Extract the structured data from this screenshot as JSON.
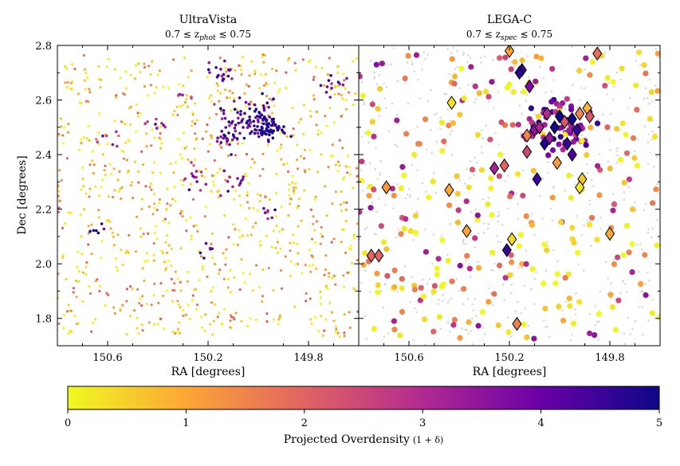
{
  "chart_data": [
    {
      "type": "scatter",
      "title": "UltraVista",
      "subtitle": "0.7 ≲ z_phot ≲ 0.75",
      "subtitle_parts": {
        "left": "0.7 ≲ z",
        "sub": "phot",
        "right": " ≲ 0.75"
      },
      "xlabel": "RA [degrees]",
      "ylabel": "Dec [degrees]",
      "xlim": [
        150.8,
        149.6
      ],
      "ylim": [
        1.7,
        2.8
      ],
      "xticks": [
        150.6,
        150.2,
        149.8
      ],
      "xtick_labels": [
        "150.6",
        "150.2",
        "149.8"
      ],
      "yticks": [
        1.8,
        2.0,
        2.2,
        2.4,
        2.6,
        2.8
      ],
      "ytick_labels": [
        "1.8",
        "2.0",
        "2.2",
        "2.4",
        "2.6",
        "2.8"
      ],
      "clusters": [
        {
          "ra": 150.0,
          "dec": 2.52,
          "spread": 0.05,
          "n": 70,
          "delta": 4.6
        },
        {
          "ra": 149.95,
          "dec": 2.49,
          "spread": 0.03,
          "n": 40,
          "delta": 4.9
        },
        {
          "ra": 150.1,
          "dec": 2.55,
          "spread": 0.05,
          "n": 25,
          "delta": 3.8
        },
        {
          "ra": 150.12,
          "dec": 2.46,
          "spread": 0.03,
          "n": 20,
          "delta": 4.2
        },
        {
          "ra": 150.15,
          "dec": 2.7,
          "spread": 0.03,
          "n": 18,
          "delta": 3.9
        },
        {
          "ra": 149.7,
          "dec": 2.65,
          "spread": 0.03,
          "n": 12,
          "delta": 4.0
        },
        {
          "ra": 150.25,
          "dec": 2.33,
          "spread": 0.03,
          "n": 12,
          "delta": 3.3
        },
        {
          "ra": 150.1,
          "dec": 2.3,
          "spread": 0.03,
          "n": 12,
          "delta": 3.6
        },
        {
          "ra": 150.4,
          "dec": 2.52,
          "spread": 0.03,
          "n": 8,
          "delta": 3.5
        },
        {
          "ra": 149.95,
          "dec": 2.2,
          "spread": 0.03,
          "n": 8,
          "delta": 3.9
        },
        {
          "ra": 150.65,
          "dec": 2.13,
          "spread": 0.02,
          "n": 6,
          "delta": 4.7
        },
        {
          "ra": 150.19,
          "dec": 2.05,
          "spread": 0.02,
          "n": 6,
          "delta": 4.5
        },
        {
          "ra": 150.3,
          "dec": 2.62,
          "spread": 0.02,
          "n": 6,
          "delta": 3.0
        },
        {
          "ra": 150.6,
          "dec": 2.46,
          "spread": 0.03,
          "n": 6,
          "delta": 3.2
        }
      ],
      "background_count": 900,
      "background_delta_range": [
        0,
        2.2
      ],
      "marker": "circle"
    },
    {
      "type": "scatter",
      "title": "LEGA-C",
      "subtitle": "0.7 ≲ z_spec ≲ 0.75",
      "subtitle_parts": {
        "left": "0.7 ≲ z",
        "sub": "spec",
        "right": " ≲ 0.75"
      },
      "xlabel": "RA [degrees]",
      "xlim": [
        150.8,
        149.6
      ],
      "ylim": [
        1.7,
        2.8
      ],
      "xticks": [
        150.6,
        150.2,
        149.8
      ],
      "xtick_labels": [
        "150.6",
        "150.2",
        "149.8"
      ],
      "yticks": [
        1.8,
        2.0,
        2.2,
        2.4,
        2.6,
        2.8
      ],
      "background_count": 500,
      "background_color": "#d9d9d9",
      "circle_count": 330,
      "circle_delta_range": [
        0,
        4.5
      ],
      "diamonds": [
        {
          "ra": 150.2,
          "dec": 2.78,
          "delta": 1.0
        },
        {
          "ra": 149.85,
          "dec": 2.77,
          "delta": 1.8
        },
        {
          "ra": 150.15,
          "dec": 2.71,
          "delta": 4.5
        },
        {
          "ra": 150.16,
          "dec": 2.7,
          "delta": 4.7
        },
        {
          "ra": 150.12,
          "dec": 2.65,
          "delta": 3.7
        },
        {
          "ra": 150.43,
          "dec": 2.59,
          "delta": 0.3
        },
        {
          "ra": 150.1,
          "dec": 2.49,
          "delta": 3.5
        },
        {
          "ra": 150.08,
          "dec": 2.5,
          "delta": 3.1
        },
        {
          "ra": 150.05,
          "dec": 2.55,
          "delta": 3.0
        },
        {
          "ra": 150.02,
          "dec": 2.5,
          "delta": 4.9
        },
        {
          "ra": 150.0,
          "dec": 2.54,
          "delta": 5.0
        },
        {
          "ra": 149.98,
          "dec": 2.52,
          "delta": 2.2
        },
        {
          "ra": 149.95,
          "dec": 2.53,
          "delta": 4.9
        },
        {
          "ra": 149.93,
          "dec": 2.49,
          "delta": 4.6
        },
        {
          "ra": 149.92,
          "dec": 2.55,
          "delta": 1.5
        },
        {
          "ra": 149.89,
          "dec": 2.57,
          "delta": 0.8
        },
        {
          "ra": 149.88,
          "dec": 2.54,
          "delta": 2.2
        },
        {
          "ra": 150.04,
          "dec": 2.46,
          "delta": 3.4
        },
        {
          "ra": 150.06,
          "dec": 2.44,
          "delta": 4.8
        },
        {
          "ra": 150.13,
          "dec": 2.47,
          "delta": 1.5
        },
        {
          "ra": 150.13,
          "dec": 2.41,
          "delta": 2.5
        },
        {
          "ra": 149.97,
          "dec": 2.44,
          "delta": 4.6
        },
        {
          "ra": 149.95,
          "dec": 2.4,
          "delta": 4.3
        },
        {
          "ra": 150.01,
          "dec": 2.37,
          "delta": 1.2
        },
        {
          "ra": 150.26,
          "dec": 2.35,
          "delta": 3.2
        },
        {
          "ra": 150.22,
          "dec": 2.36,
          "delta": 2.0
        },
        {
          "ra": 150.09,
          "dec": 2.31,
          "delta": 4.5
        },
        {
          "ra": 149.91,
          "dec": 2.31,
          "delta": 0.6
        },
        {
          "ra": 149.92,
          "dec": 2.28,
          "delta": 0.2
        },
        {
          "ra": 150.69,
          "dec": 2.28,
          "delta": 1.2
        },
        {
          "ra": 150.44,
          "dec": 2.27,
          "delta": 1.0
        },
        {
          "ra": 150.37,
          "dec": 2.12,
          "delta": 1.0
        },
        {
          "ra": 149.8,
          "dec": 2.11,
          "delta": 1.0
        },
        {
          "ra": 150.19,
          "dec": 2.09,
          "delta": 0.4
        },
        {
          "ra": 150.21,
          "dec": 2.05,
          "delta": 4.6
        },
        {
          "ra": 150.75,
          "dec": 2.03,
          "delta": 2.0
        },
        {
          "ra": 150.72,
          "dec": 2.03,
          "delta": 2.0
        },
        {
          "ra": 150.17,
          "dec": 1.78,
          "delta": 1.6
        }
      ]
    }
  ],
  "colorbar": {
    "label": "Projected Overdensity",
    "label_math": "(1 + δ)",
    "range": [
      0,
      5
    ],
    "ticks": [
      0,
      1,
      2,
      3,
      4,
      5
    ],
    "tick_labels": [
      "0",
      "1",
      "2",
      "3",
      "4",
      "5"
    ],
    "colormap": "plasma-reversed",
    "stops": [
      "#f0f921",
      "#fca636",
      "#e16462",
      "#b12a90",
      "#6a00a8",
      "#0d0887"
    ]
  }
}
